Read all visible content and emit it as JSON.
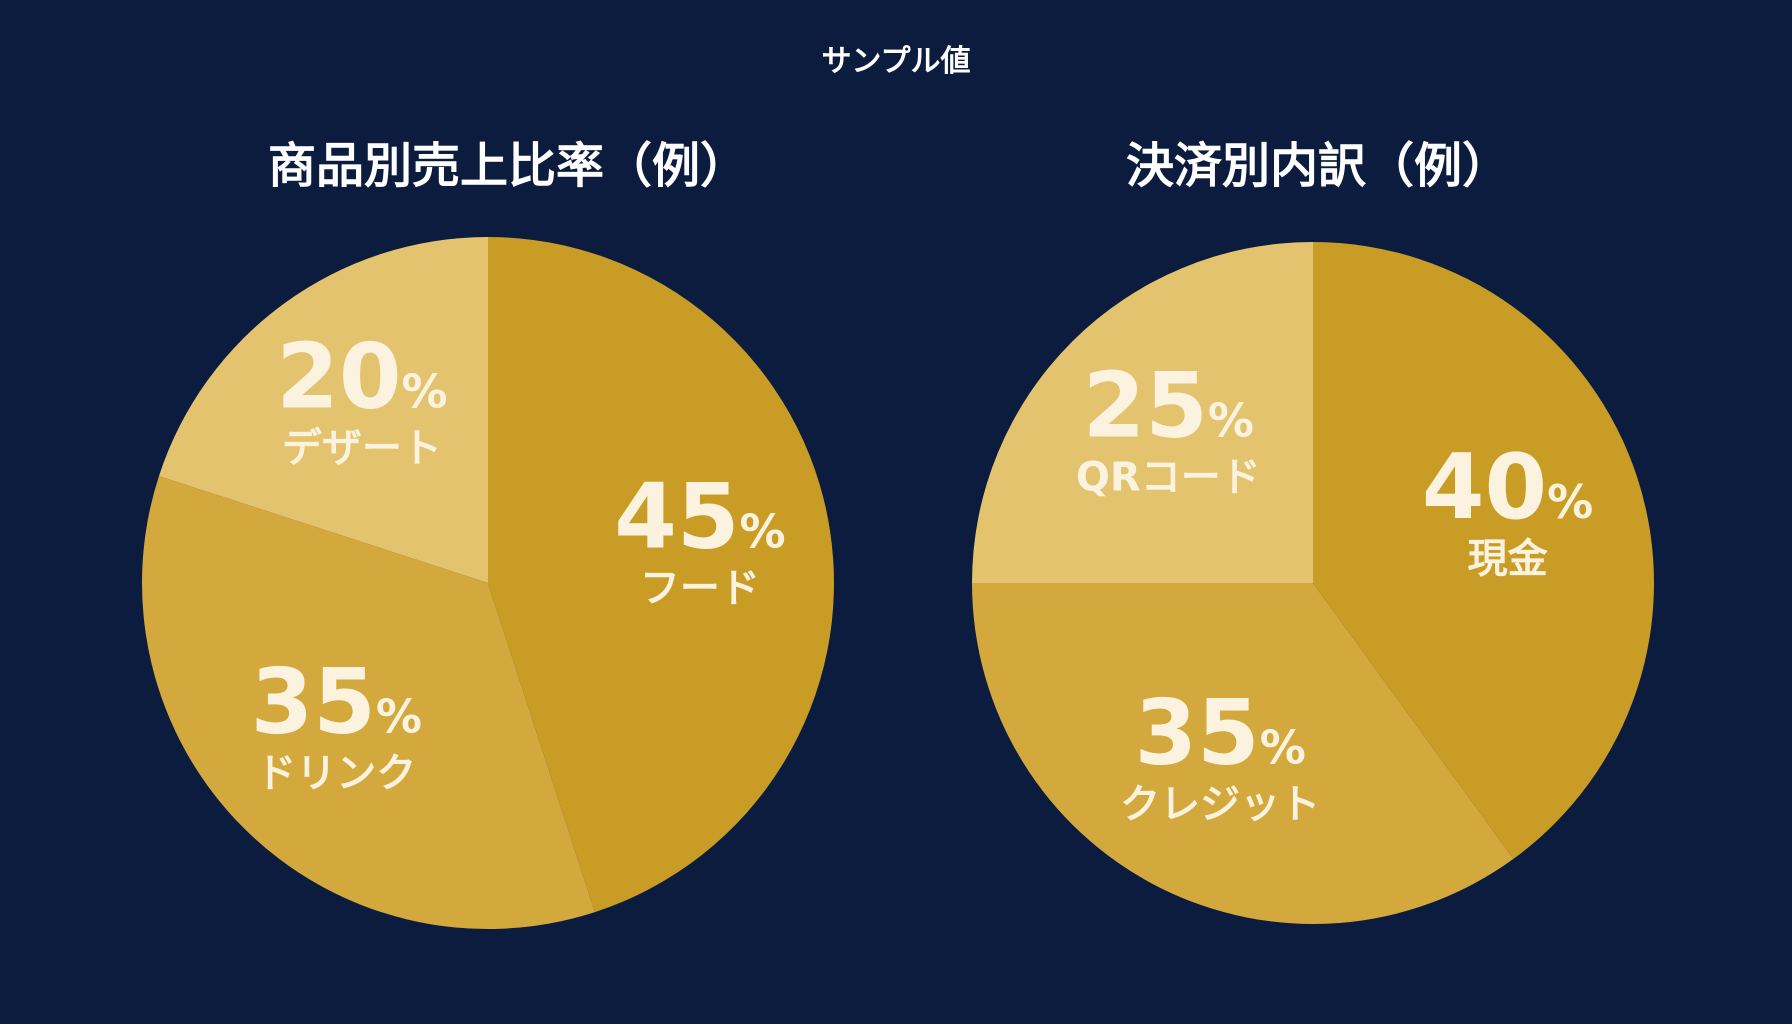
{
  "header": {
    "label": "サンプル値"
  },
  "chart_data": [
    {
      "type": "pie",
      "title": "商品別売上比率（例）",
      "slices": [
        {
          "label": "フード",
          "value": 45,
          "display": "45",
          "color": "#c99d25"
        },
        {
          "label": "ドリンク",
          "value": 35,
          "display": "35",
          "color": "#d3a83c"
        },
        {
          "label": "デザート",
          "value": 20,
          "display": "20",
          "color": "#e3c36d"
        }
      ],
      "unit": "%"
    },
    {
      "type": "pie",
      "title": "決済別内訳（例）",
      "slices": [
        {
          "label": "現金",
          "value": 40,
          "display": "40",
          "color": "#c99d25"
        },
        {
          "label": "クレジット",
          "value": 35,
          "display": "35",
          "color": "#d3a83c"
        },
        {
          "label": "QRコード",
          "value": 25,
          "display": "25",
          "color": "#e3c36d"
        }
      ],
      "unit": "%"
    }
  ]
}
